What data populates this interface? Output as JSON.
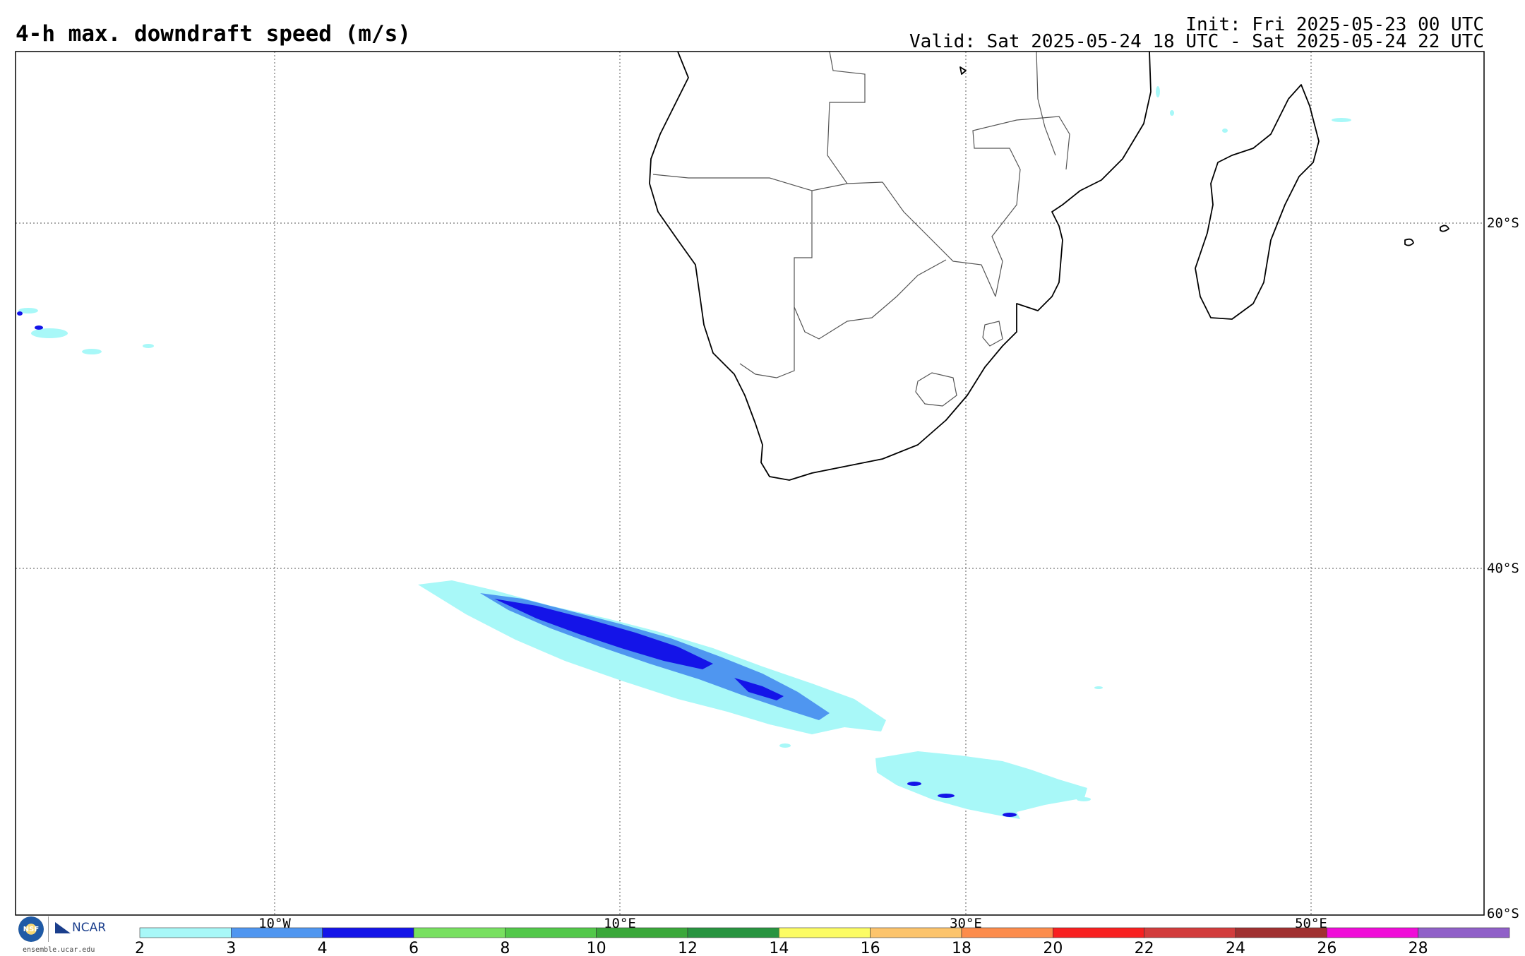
{
  "header": {
    "title": "4-h max. downdraft speed (m/s)",
    "init": "Init: Fri 2025-05-23 00 UTC",
    "valid": "Valid: Sat 2025-05-24 18 UTC - Sat 2025-05-24 22 UTC"
  },
  "map": {
    "lat_labels": [
      "20°S",
      "40°S",
      "60°S"
    ],
    "lon_labels": [
      "10°W",
      "10°E",
      "30°E",
      "50°E"
    ]
  },
  "legend": {
    "ticks": [
      "2",
      "3",
      "4",
      "6",
      "8",
      "10",
      "12",
      "14",
      "16",
      "18",
      "20",
      "22",
      "24",
      "26",
      "28"
    ],
    "colors": [
      "#a8f8f8",
      "#4f96f0",
      "#1414e8",
      "#78e060",
      "#52c84a",
      "#3aa83a",
      "#289440",
      "#fcfc64",
      "#fcc46c",
      "#fc8c4c",
      "#f82020",
      "#d23c3c",
      "#a03030",
      "#f00cd8",
      "#9060c8"
    ]
  },
  "footer": {
    "logo_nsf": "NSF",
    "logo_ncar": "NCAR",
    "site": "ensemble.ucar.edu"
  }
}
